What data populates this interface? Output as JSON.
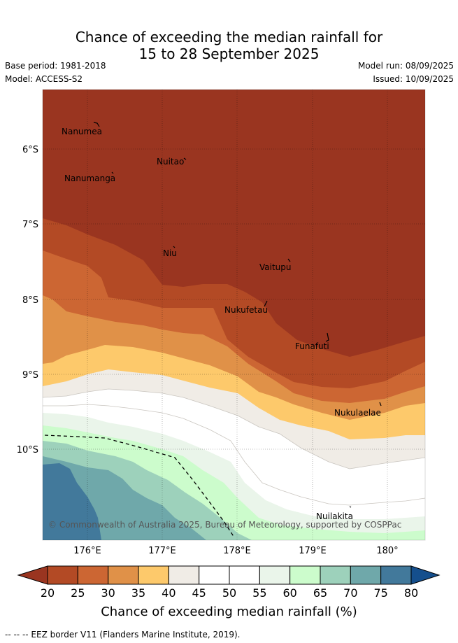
{
  "title_line1": "Chance of exceeding the median rainfall for",
  "title_line2": "15 to 28 September 2025",
  "base_period": "Base period: 1981-2018",
  "model": "Model: ACCESS-S2",
  "model_run": "Model run: 08/09/2025",
  "issued": "Issued: 10/09/2025",
  "copyright": "© Commonwealth of Australia 2025, Bureau of Meteorology, supported by COSPPac",
  "lat_labels": [
    "6°S",
    "7°S",
    "8°S",
    "9°S",
    "10°S"
  ],
  "lon_labels": [
    "176°E",
    "177°E",
    "178°E",
    "179°E",
    "180°"
  ],
  "islands": [
    "Nanumea",
    "Nuitao",
    "Nanumanga",
    "Niu",
    "Vaitupu",
    "Nukufetau",
    "Funafuti",
    "Nukulaelae",
    "Nuilakita"
  ],
  "colorbar": {
    "ticks": [
      "20",
      "25",
      "30",
      "35",
      "40",
      "45",
      "50",
      "55",
      "60",
      "65",
      "70",
      "75",
      "80"
    ],
    "colors": [
      "#9a3520",
      "#b34a25",
      "#cc6633",
      "#e09148",
      "#fdc96b",
      "#f0ece6",
      "#ffffff",
      "#ffffff",
      "#eaf5ea",
      "#ccfccc",
      "#9dd1bb",
      "#6fa8aa",
      "#42799b",
      "#154f8d"
    ],
    "title": "Chance of exceeding median rainfall (%)"
  },
  "footer": "-- -- -- EEZ border V11 (Flanders Marine Institute, 2019)."
}
